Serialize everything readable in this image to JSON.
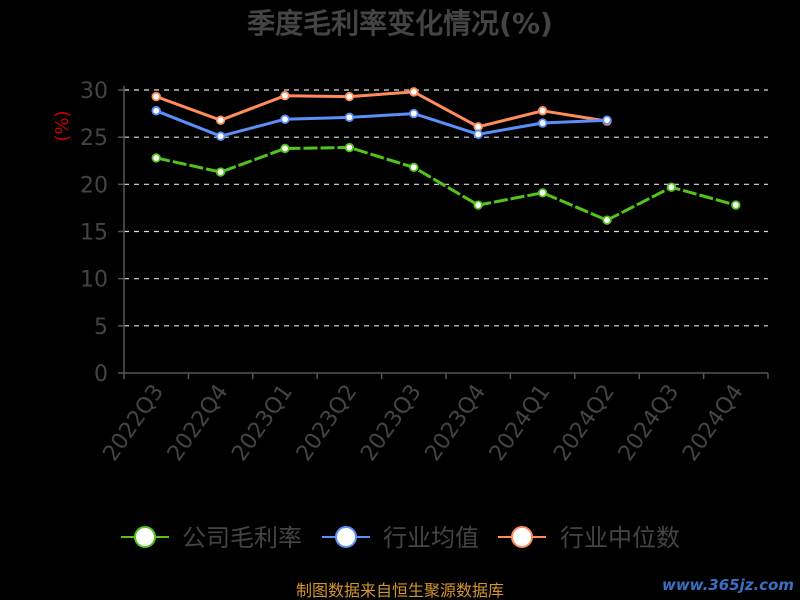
{
  "chart_data": {
    "type": "line",
    "title": "季度毛利率变化情况(%)",
    "ylabel": "(%)",
    "xlabel": "",
    "categories": [
      "2022Q3",
      "2022Q4",
      "2023Q1",
      "2023Q2",
      "2023Q3",
      "2023Q4",
      "2024Q1",
      "2024Q2",
      "2024Q3",
      "2024Q4"
    ],
    "ylim": [
      0,
      30
    ],
    "yticks": [
      0,
      5,
      10,
      15,
      20,
      25,
      30
    ],
    "grid": true,
    "legend_position": "bottom",
    "series": [
      {
        "name": "公司毛利率",
        "color": "#52c41a",
        "values": [
          22.8,
          21.3,
          23.8,
          23.9,
          21.8,
          17.8,
          19.1,
          16.2,
          19.7,
          17.8
        ]
      },
      {
        "name": "行业均值",
        "color": "#5b8ff9",
        "values": [
          27.8,
          25.1,
          26.9,
          27.1,
          27.5,
          25.3,
          26.5,
          26.8,
          null,
          null
        ]
      },
      {
        "name": "行业中位数",
        "color": "#ff8c5a",
        "values": [
          29.3,
          26.8,
          29.4,
          29.3,
          29.8,
          26.1,
          27.8,
          26.7,
          null,
          null
        ]
      }
    ]
  },
  "source": "制图数据来自恒生聚源数据库",
  "watermark": "www.365jz.com"
}
